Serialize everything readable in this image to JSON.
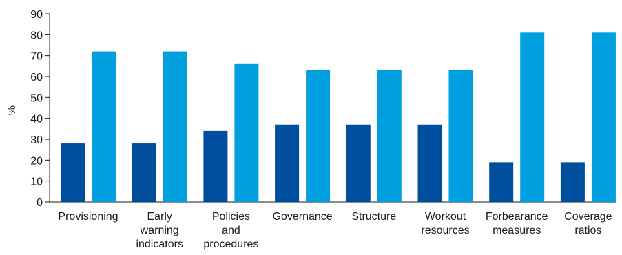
{
  "chart_data": {
    "type": "bar",
    "title": "",
    "xlabel": "",
    "ylabel": "%",
    "ylim": [
      0,
      90
    ],
    "yticks": [
      0,
      10,
      20,
      30,
      40,
      50,
      60,
      70,
      80,
      90
    ],
    "grid": false,
    "legend": "none",
    "categories": [
      [
        "Provisioning"
      ],
      [
        "Early",
        "warning",
        "indicators"
      ],
      [
        "Policies",
        "and",
        "procedures"
      ],
      [
        "Governance"
      ],
      [
        "Structure"
      ],
      [
        "Workout",
        "resources"
      ],
      [
        "Forbearance",
        "measures"
      ],
      [
        "Coverage",
        "ratios"
      ]
    ],
    "series": [
      {
        "color": "#004f9e",
        "values": [
          28,
          28,
          34,
          37,
          37,
          37,
          19,
          19
        ]
      },
      {
        "color": "#009fdf",
        "values": [
          72,
          72,
          66,
          63,
          63,
          63,
          81,
          81
        ]
      }
    ]
  }
}
